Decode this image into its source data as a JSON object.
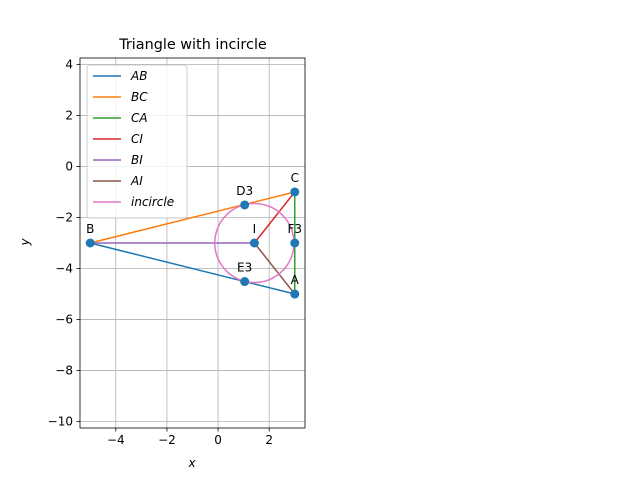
{
  "chart_data": {
    "type": "line",
    "title": "Triangle with incircle",
    "xlabel": "x",
    "ylabel": "y",
    "xlim": [
      -5.4,
      3.4
    ],
    "ylim": [
      -10.25,
      4.25
    ],
    "xticks": [
      -4,
      -2,
      0,
      2
    ],
    "xtick_labels": [
      "−4",
      "−2",
      "0",
      "2"
    ],
    "yticks": [
      4,
      2,
      0,
      -2,
      -4,
      -6,
      -8,
      -10
    ],
    "ytick_labels": [
      "4",
      "2",
      "0",
      "−2",
      "−4",
      "−6",
      "−8",
      "−10"
    ],
    "grid": true,
    "legend_position": "top-left",
    "series": [
      {
        "name": "AB",
        "color": "#1f77b4",
        "x": [
          3,
          -5
        ],
        "y": [
          -5,
          -3
        ]
      },
      {
        "name": "BC",
        "color": "#ff7f0e",
        "x": [
          -5,
          3
        ],
        "y": [
          -3,
          -1
        ]
      },
      {
        "name": "CA",
        "color": "#2ca02c",
        "x": [
          3,
          3
        ],
        "y": [
          -1,
          -5
        ]
      },
      {
        "name": "CI",
        "color": "#d62728",
        "x": [
          3,
          1.42
        ],
        "y": [
          -1,
          -3
        ]
      },
      {
        "name": "BI",
        "color": "#9467bd",
        "x": [
          -5,
          1.42
        ],
        "y": [
          -3,
          -3
        ]
      },
      {
        "name": "AI",
        "color": "#8c564b",
        "x": [
          3,
          1.42
        ],
        "y": [
          -5,
          -3
        ]
      },
      {
        "name": "incircle",
        "color": "#e377c2",
        "type": "circle",
        "center": [
          1.42,
          -3
        ],
        "radius": 1.55
      }
    ],
    "points": [
      {
        "label": "A",
        "x": 3,
        "y": -5
      },
      {
        "label": "B",
        "x": -5,
        "y": -3
      },
      {
        "label": "C",
        "x": 3,
        "y": -1
      },
      {
        "label": "I",
        "x": 1.42,
        "y": -3
      },
      {
        "label": "D3",
        "x": 1.04,
        "y": -1.51
      },
      {
        "label": "E3",
        "x": 1.04,
        "y": -4.51
      },
      {
        "label": "F3",
        "x": 3,
        "y": -3
      }
    ],
    "marker_color": "#1f77b4"
  }
}
